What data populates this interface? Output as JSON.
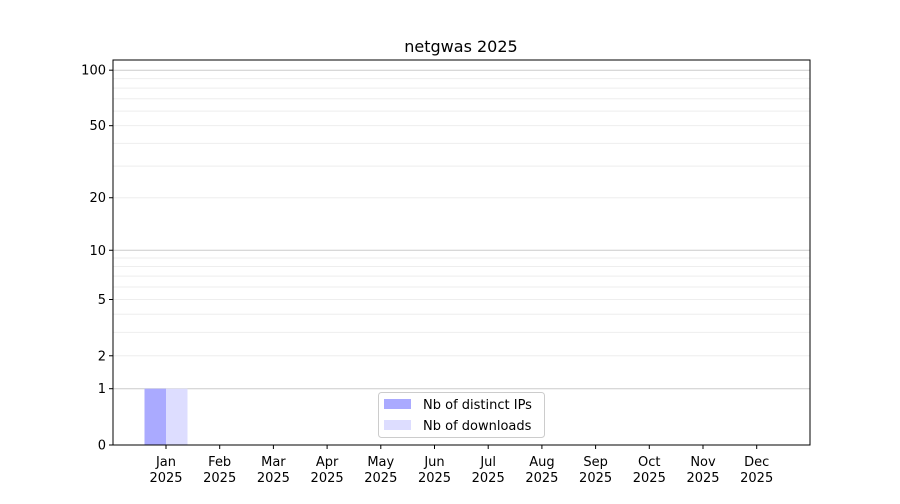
{
  "chart_data": {
    "type": "bar",
    "title": "netgwas 2025",
    "xlabel": "",
    "ylabel": "",
    "yscale": "log(1+y)",
    "ylim": [
      0,
      113.5
    ],
    "yticks": [
      0,
      1,
      2,
      5,
      10,
      20,
      50,
      100
    ],
    "ytick_labels": [
      "0",
      "1",
      "2",
      "5",
      "10",
      "20",
      "50",
      "100"
    ],
    "major_grid": [
      1,
      10,
      100
    ],
    "minor_grid": [
      2,
      3,
      4,
      5,
      6,
      7,
      8,
      9,
      20,
      30,
      40,
      50,
      60,
      70,
      80,
      90
    ],
    "categories": [
      {
        "month": "Jan",
        "year": "2025"
      },
      {
        "month": "Feb",
        "year": "2025"
      },
      {
        "month": "Mar",
        "year": "2025"
      },
      {
        "month": "Apr",
        "year": "2025"
      },
      {
        "month": "May",
        "year": "2025"
      },
      {
        "month": "Jun",
        "year": "2025"
      },
      {
        "month": "Jul",
        "year": "2025"
      },
      {
        "month": "Aug",
        "year": "2025"
      },
      {
        "month": "Sep",
        "year": "2025"
      },
      {
        "month": "Oct",
        "year": "2025"
      },
      {
        "month": "Nov",
        "year": "2025"
      },
      {
        "month": "Dec",
        "year": "2025"
      }
    ],
    "series": [
      {
        "name": "Nb of distinct IPs",
        "color": "#aaaaff",
        "values": [
          1,
          0,
          0,
          0,
          0,
          0,
          0,
          0,
          0,
          0,
          0,
          0
        ]
      },
      {
        "name": "Nb of downloads",
        "color": "#ddddff",
        "values": [
          1,
          0,
          0,
          0,
          0,
          0,
          0,
          0,
          0,
          0,
          0,
          0
        ]
      }
    ],
    "grid": true,
    "legend": "bottom-center"
  }
}
